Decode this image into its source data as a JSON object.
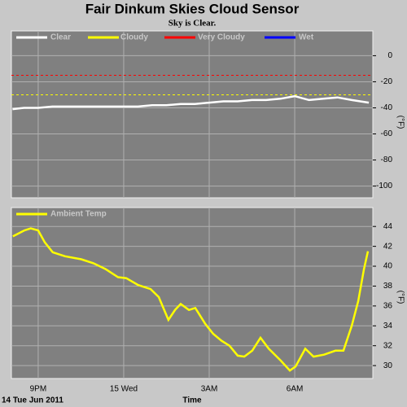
{
  "chart_data": [
    {
      "type": "line",
      "title": "Fair Dinkum Skies Cloud Sensor",
      "subtitle": "Sky is Clear.",
      "y_label": "(°F)",
      "xlim": [
        20.06,
        32.74
      ],
      "ylim": [
        -109,
        19
      ],
      "yticks": [
        0,
        -20,
        -40,
        -60,
        -80,
        -100
      ],
      "grid": true,
      "x": [
        20.1,
        20.5,
        21,
        21.5,
        22,
        22.5,
        23,
        23.5,
        24,
        24.5,
        25,
        25.5,
        26,
        26.5,
        27,
        27.5,
        28,
        28.5,
        29,
        29.5,
        30,
        30.5,
        31,
        31.5,
        32,
        32.6
      ],
      "series": [
        {
          "name": "Clear",
          "color": "#ffffff",
          "values": [
            -41,
            -40,
            -40,
            -39,
            -39,
            -39,
            -39,
            -39,
            -39,
            -39,
            -38,
            -38,
            -37,
            -37,
            -36,
            -35,
            -35,
            -34,
            -34,
            -33,
            -31,
            -34,
            -33,
            -32,
            -34,
            -36
          ]
        },
        {
          "name": "Cloudy",
          "color": "#ffff00",
          "threshold": -30
        },
        {
          "name": "Very Cloudy",
          "color": "#ff0000",
          "threshold": -15
        },
        {
          "name": "Wet",
          "color": "#0000ff"
        }
      ]
    },
    {
      "type": "line",
      "y_label": "(°F)",
      "x_label": "Time",
      "date_label": "14 Tue Jun 2011",
      "xlim": [
        20.06,
        32.74
      ],
      "ylim": [
        28.7,
        45.9
      ],
      "yticks": [
        44,
        42,
        40,
        38,
        36,
        34,
        32,
        30
      ],
      "grid": true,
      "xticks": [
        {
          "value": 21,
          "label": "9PM"
        },
        {
          "value": 24,
          "label": "15 Wed"
        },
        {
          "value": 27,
          "label": "3AM"
        },
        {
          "value": 30,
          "label": "6AM"
        }
      ],
      "x": [
        20.11,
        20.51,
        20.74,
        21,
        21.23,
        21.51,
        21.94,
        22.51,
        22.94,
        23.37,
        23.8,
        24.09,
        24.51,
        24.94,
        25.23,
        25.57,
        25.8,
        26,
        26.29,
        26.51,
        26.86,
        27.14,
        27.43,
        27.71,
        28,
        28.23,
        28.51,
        28.8,
        29.09,
        29.51,
        29.83,
        30.03,
        30.37,
        30.66,
        31.03,
        31.43,
        31.71,
        32,
        32.23,
        32.43,
        32.57
      ],
      "series": [
        {
          "name": "Ambient Temp",
          "color": "#ffff00",
          "values": [
            43.0,
            43.6,
            43.8,
            43.6,
            42.4,
            41.4,
            41.0,
            40.7,
            40.3,
            39.7,
            38.9,
            38.8,
            38.1,
            37.7,
            36.9,
            34.6,
            35.6,
            36.2,
            35.6,
            35.8,
            34.2,
            33.2,
            32.5,
            32.0,
            31.0,
            30.9,
            31.5,
            32.8,
            31.7,
            30.5,
            29.5,
            29.9,
            31.7,
            30.9,
            31.1,
            31.5,
            31.5,
            34.0,
            36.5,
            39.7,
            41.5
          ]
        }
      ]
    }
  ]
}
